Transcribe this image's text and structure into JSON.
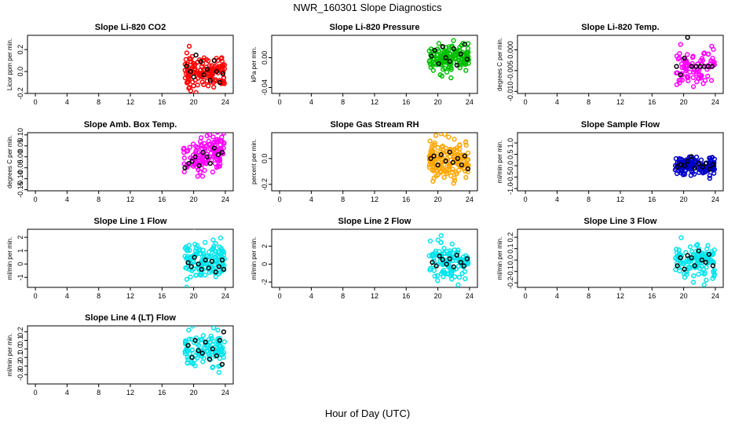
{
  "figure": {
    "title": "NWR_160301  Slope Diagnostics",
    "xlabel": "Hour of Day (UTC)"
  },
  "chart_data": [
    {
      "type": "scatter",
      "title": "Slope Li-820 CO2",
      "ylabel": "Licor ppm per min.",
      "xlim": [
        -1,
        25
      ],
      "xticks": [
        0,
        4,
        8,
        12,
        16,
        20,
        24
      ],
      "ylim": [
        -0.2,
        0.33
      ],
      "yticks": [
        -0.2,
        0,
        0.2
      ],
      "yticklabels": [
        "-0.2",
        "0.0",
        "0.2"
      ],
      "color": "#ff0000",
      "x_range": [
        18.9,
        23.9
      ],
      "y_center": 0.0,
      "y_spread": 0.07,
      "n_points": 140,
      "black_points": [
        [
          19.1,
          0.05
        ],
        [
          19.6,
          0.0
        ],
        [
          20.0,
          -0.05
        ],
        [
          20.3,
          0.15
        ],
        [
          20.9,
          0.09
        ],
        [
          21.3,
          -0.03
        ],
        [
          21.7,
          0.02
        ],
        [
          22.1,
          -0.08
        ],
        [
          22.6,
          0.1
        ],
        [
          22.9,
          0.0
        ],
        [
          23.3,
          -0.1
        ],
        [
          23.7,
          -0.02
        ]
      ]
    },
    {
      "type": "scatter",
      "title": "Slope Li-820 Pressure",
      "ylabel": "kPa per min.",
      "xlim": [
        -1,
        25
      ],
      "xticks": [
        0,
        4,
        8,
        12,
        16,
        20,
        24
      ],
      "ylim": [
        -0.048,
        0.03
      ],
      "yticks": [
        -0.04,
        0.0
      ],
      "yticklabels": [
        "-0.04",
        "0.00"
      ],
      "color": "#00c000",
      "x_range": [
        18.9,
        23.9
      ],
      "y_center": 0.0,
      "y_spread": 0.009,
      "n_points": 150,
      "black_points": [
        [
          19.2,
          0.002
        ],
        [
          19.6,
          0.01
        ],
        [
          20.1,
          -0.008
        ],
        [
          20.6,
          0.015
        ],
        [
          21.0,
          0.0
        ],
        [
          21.5,
          -0.005
        ],
        [
          22.0,
          0.012
        ],
        [
          22.4,
          -0.01
        ],
        [
          22.9,
          0.005
        ],
        [
          23.4,
          0.018
        ],
        [
          23.7,
          -0.002
        ]
      ]
    },
    {
      "type": "scatter",
      "title": "Slope Li-820 Temp.",
      "ylabel": "degrees C per min.",
      "xlim": [
        -1,
        25
      ],
      "xticks": [
        0,
        4,
        8,
        12,
        16,
        20,
        24
      ],
      "ylim": [
        -0.0105,
        0.0035
      ],
      "yticks": [
        -0.01,
        -0.005,
        0.0
      ],
      "yticklabels": [
        "-0.010",
        "-0.005",
        "0.000"
      ],
      "color": "#ff00ff",
      "x_range": [
        18.9,
        23.9
      ],
      "y_center": -0.004,
      "y_spread": 0.0022,
      "n_points": 90,
      "black_points": [
        [
          19.1,
          -0.004
        ],
        [
          19.6,
          -0.006
        ],
        [
          20.1,
          -0.002
        ],
        [
          20.5,
          0.003
        ],
        [
          21.0,
          -0.004
        ],
        [
          21.6,
          -0.004
        ],
        [
          22.1,
          -0.004
        ],
        [
          22.6,
          -0.004
        ],
        [
          23.1,
          -0.004
        ],
        [
          23.6,
          -0.004
        ]
      ]
    },
    {
      "type": "scatter",
      "title": "Slope Amb. Box Temp.",
      "ylabel": "degrees C per min.",
      "xlim": [
        -1,
        25
      ],
      "xticks": [
        0,
        4,
        8,
        12,
        16,
        20,
        24
      ],
      "ylim": [
        -0.155,
        0.11
      ],
      "yticks": [
        -0.15,
        -0.1,
        -0.05,
        0.0,
        0.05,
        0.1
      ],
      "yticklabels": [
        "-0.15",
        "-0.10",
        "-0.05",
        "0.00",
        "0.05",
        "0.10"
      ],
      "color": "#ff00ff",
      "x_range": [
        18.7,
        23.9
      ],
      "y_center": 0.0,
      "y_spread": 0.045,
      "trend": 0.016,
      "n_points": 130,
      "black_points": [
        [
          18.9,
          -0.05
        ],
        [
          19.4,
          -0.03
        ],
        [
          19.8,
          -0.02
        ],
        [
          20.2,
          0.0
        ],
        [
          20.7,
          -0.04
        ],
        [
          21.2,
          0.02
        ],
        [
          21.7,
          0.0
        ],
        [
          22.1,
          -0.03
        ],
        [
          22.6,
          0.04
        ],
        [
          23.1,
          0.01
        ],
        [
          23.6,
          0.02
        ]
      ]
    },
    {
      "type": "scatter",
      "title": "Slope Gas Stream RH",
      "ylabel": "percent per min.",
      "xlim": [
        -1,
        25
      ],
      "xticks": [
        0,
        4,
        8,
        12,
        16,
        20,
        24
      ],
      "ylim": [
        -0.25,
        0.2
      ],
      "yticks": [
        -0.2,
        0.0
      ],
      "yticklabels": [
        "-0.2",
        "0.0"
      ],
      "color": "#ffa500",
      "x_range": [
        18.9,
        23.9
      ],
      "y_center": 0.0,
      "y_spread": 0.08,
      "n_points": 150,
      "black_points": [
        [
          19.1,
          0.0
        ],
        [
          19.5,
          0.02
        ],
        [
          20.0,
          -0.05
        ],
        [
          20.4,
          0.03
        ],
        [
          21.0,
          -0.02
        ],
        [
          21.5,
          0.05
        ],
        [
          21.9,
          -0.03
        ],
        [
          22.5,
          0.0
        ],
        [
          23.0,
          -0.05
        ],
        [
          23.4,
          0.02
        ],
        [
          23.8,
          -0.08
        ]
      ]
    },
    {
      "type": "scatter",
      "title": "Slope Sample Flow",
      "ylabel": "ml/min per min.",
      "xlim": [
        -1,
        25
      ],
      "xticks": [
        0,
        4,
        8,
        12,
        16,
        20,
        24
      ],
      "ylim": [
        -1.1,
        1.45
      ],
      "yticks": [
        -1.0,
        -0.5,
        0.0,
        0.5,
        1.0
      ],
      "yticklabels": [
        "-1.0",
        "-0.5",
        "0.0",
        "0.5",
        "1.0"
      ],
      "color": "#0000cc",
      "x_range": [
        18.9,
        23.9
      ],
      "y_center": 0.0,
      "y_spread": 0.2,
      "n_points": 150,
      "black_points": [
        [
          19.2,
          -0.05
        ],
        [
          19.6,
          0.05
        ],
        [
          20.1,
          0.0
        ],
        [
          20.5,
          0.2
        ],
        [
          21.0,
          0.4
        ],
        [
          21.4,
          -0.1
        ],
        [
          21.9,
          0.1
        ],
        [
          22.4,
          -0.05
        ],
        [
          22.8,
          0.1
        ],
        [
          23.3,
          -0.15
        ],
        [
          23.7,
          0.05
        ]
      ]
    },
    {
      "type": "scatter",
      "title": "Slope Line 1 Flow",
      "ylabel": "ml/min per min.",
      "xlim": [
        -1,
        25
      ],
      "xticks": [
        0,
        4,
        8,
        12,
        16,
        20,
        24
      ],
      "ylim": [
        -1.75,
        2.6
      ],
      "yticks": [
        -1,
        0,
        1,
        2
      ],
      "yticklabels": [
        "-1",
        "0",
        "1",
        "2"
      ],
      "color": "#00e5ee",
      "x_range": [
        18.9,
        23.9
      ],
      "y_center": 0.2,
      "y_spread": 0.7,
      "n_points": 130,
      "black_points": [
        [
          19.3,
          0.1
        ],
        [
          19.7,
          -0.2
        ],
        [
          20.1,
          0.5
        ],
        [
          20.6,
          0.0
        ],
        [
          21.0,
          -0.4
        ],
        [
          21.5,
          0.3
        ],
        [
          21.9,
          -0.3
        ],
        [
          22.3,
          0.2
        ],
        [
          22.8,
          -0.6
        ],
        [
          23.2,
          -0.2
        ],
        [
          23.6,
          0.3
        ],
        [
          23.8,
          -0.4
        ]
      ]
    },
    {
      "type": "scatter",
      "title": "Slope Line 2 Flow",
      "ylabel": "ml/min per min.",
      "xlim": [
        -1,
        25
      ],
      "xticks": [
        0,
        4,
        8,
        12,
        16,
        20,
        24
      ],
      "ylim": [
        -2.6,
        3.9
      ],
      "yticks": [
        -2,
        0,
        2
      ],
      "yticklabels": [
        "-2",
        "0",
        "2"
      ],
      "color": "#00e5ee",
      "x_range": [
        18.9,
        23.9
      ],
      "y_center": 0.4,
      "y_spread": 1.0,
      "n_points": 120,
      "black_points": [
        [
          19.3,
          0.2
        ],
        [
          19.8,
          -0.2
        ],
        [
          20.2,
          0.9
        ],
        [
          20.6,
          0.5
        ],
        [
          21.1,
          0.0
        ],
        [
          21.5,
          0.6
        ],
        [
          22.0,
          -0.3
        ],
        [
          22.4,
          1.0
        ],
        [
          22.9,
          0.2
        ],
        [
          23.3,
          -0.2
        ],
        [
          23.7,
          0.6
        ]
      ]
    },
    {
      "type": "scatter",
      "title": "Slope Line 3 Flow",
      "ylabel": "ml/min per min.",
      "xlim": [
        -1,
        25
      ],
      "xticks": [
        0,
        4,
        8,
        12,
        16,
        20,
        24
      ],
      "ylim": [
        -0.24,
        0.27
      ],
      "yticks": [
        -0.2,
        -0.1,
        0.0,
        0.1,
        0.2
      ],
      "yticklabels": [
        "-0.2",
        "-0.1",
        "0.0",
        "0.1",
        "0.2"
      ],
      "color": "#00e5ee",
      "x_range": [
        18.9,
        23.9
      ],
      "y_center": 0.0,
      "y_spread": 0.07,
      "n_points": 120,
      "black_points": [
        [
          19.2,
          -0.05
        ],
        [
          19.6,
          0.02
        ],
        [
          20.1,
          -0.08
        ],
        [
          20.5,
          0.04
        ],
        [
          21.0,
          0.02
        ],
        [
          21.4,
          -0.05
        ],
        [
          21.9,
          0.08
        ],
        [
          22.3,
          0.0
        ],
        [
          22.8,
          -0.02
        ],
        [
          23.2,
          0.05
        ],
        [
          23.7,
          -0.05
        ]
      ]
    },
    {
      "type": "scatter",
      "title": "Slope Line 4 (LT) Flow",
      "ylabel": "ml/min per min.",
      "xlim": [
        -1,
        25
      ],
      "xticks": [
        0,
        4,
        8,
        12,
        16,
        20,
        24
      ],
      "ylim": [
        -0.41,
        0.27
      ],
      "yticks": [
        -0.3,
        -0.2,
        -0.1,
        0.0,
        0.1,
        0.2
      ],
      "yticklabels": [
        "-0.3",
        "-0.2",
        "-0.1",
        "0.0",
        "0.1",
        "0.2"
      ],
      "color": "#00e5ee",
      "x_range": [
        18.9,
        23.9
      ],
      "y_center": 0.0,
      "y_spread": 0.1,
      "n_points": 110,
      "black_points": [
        [
          19.3,
          0.04
        ],
        [
          19.8,
          -0.1
        ],
        [
          20.2,
          0.1
        ],
        [
          20.6,
          -0.02
        ],
        [
          21.1,
          -0.05
        ],
        [
          21.5,
          0.08
        ],
        [
          22.0,
          -0.12
        ],
        [
          22.4,
          0.0
        ],
        [
          22.9,
          -0.08
        ],
        [
          23.3,
          0.1
        ],
        [
          23.6,
          -0.18
        ],
        [
          23.8,
          0.2
        ]
      ]
    }
  ]
}
